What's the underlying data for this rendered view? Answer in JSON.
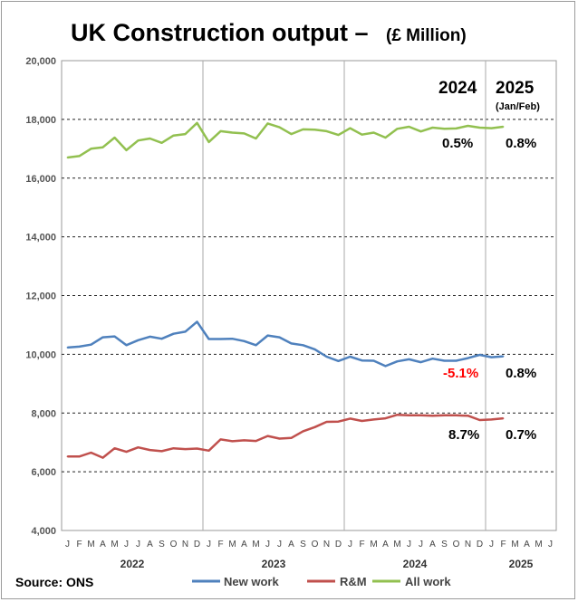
{
  "chart_data": {
    "type": "line",
    "title": "UK Construction output –",
    "subtitle": "(£ Million)",
    "ylim": [
      4000,
      20000
    ],
    "yticks": [
      "4,000",
      "6,000",
      "8,000",
      "10,000",
      "12,000",
      "14,000",
      "16,000",
      "18,000",
      "20,000"
    ],
    "ytick_values": [
      4000,
      6000,
      8000,
      10000,
      12000,
      14000,
      16000,
      18000,
      20000
    ],
    "x_month_labels": [
      "J",
      "F",
      "M",
      "A",
      "M",
      "J",
      "J",
      "A",
      "S",
      "O",
      "N",
      "D",
      "J",
      "F",
      "M",
      "A",
      "M",
      "J",
      "J",
      "A",
      "S",
      "O",
      "N",
      "D",
      "J",
      "F",
      "M",
      "A",
      "M",
      "J",
      "J",
      "A",
      "S",
      "O",
      "N",
      "D",
      "J",
      "F",
      "M",
      "A",
      "M",
      "J"
    ],
    "years": [
      {
        "label": "2022",
        "first_month_index": 0,
        "months": 12
      },
      {
        "label": "2023",
        "first_month_index": 12,
        "months": 12
      },
      {
        "label": "2024",
        "first_month_index": 24,
        "months": 12
      },
      {
        "label": "2025",
        "first_month_index": 36,
        "months": 6
      }
    ],
    "grid": "horizontal dashed, vertical year separators",
    "series": [
      {
        "name": "All work",
        "color": "#92c050",
        "values": [
          16700,
          16750,
          17000,
          17050,
          17380,
          16950,
          17280,
          17350,
          17200,
          17450,
          17500,
          17880,
          17230,
          17600,
          17550,
          17520,
          17350,
          17860,
          17730,
          17500,
          17660,
          17650,
          17600,
          17470,
          17700,
          17480,
          17550,
          17380,
          17680,
          17750,
          17590,
          17720,
          17680,
          17690,
          17780,
          17720,
          17700,
          17750
        ]
      },
      {
        "name": "New work",
        "color": "#4f81bd",
        "values": [
          10230,
          10260,
          10330,
          10580,
          10610,
          10310,
          10480,
          10600,
          10530,
          10700,
          10770,
          11110,
          10520,
          10520,
          10530,
          10450,
          10310,
          10640,
          10580,
          10370,
          10310,
          10170,
          9920,
          9770,
          9920,
          9790,
          9780,
          9600,
          9760,
          9830,
          9730,
          9850,
          9780,
          9780,
          9870,
          9980,
          9900,
          9930
        ]
      },
      {
        "name": "R&M",
        "color": "#c0504d",
        "values": [
          6520,
          6520,
          6650,
          6480,
          6800,
          6680,
          6830,
          6740,
          6700,
          6800,
          6770,
          6790,
          6720,
          7100,
          7040,
          7070,
          7050,
          7220,
          7130,
          7150,
          7380,
          7520,
          7700,
          7710,
          7810,
          7730,
          7780,
          7820,
          7940,
          7920,
          7920,
          7910,
          7920,
          7920,
          7910,
          7760,
          7780,
          7820
        ]
      }
    ],
    "column_headers": [
      {
        "label": "2024",
        "sub": ""
      },
      {
        "label": "2025",
        "sub": "(Jan/Feb)"
      }
    ],
    "annotations": [
      {
        "series": "All work",
        "col2024": "0.5%",
        "col2025": "0.8%",
        "negative2024": false
      },
      {
        "series": "New work",
        "col2024": "-5.1%",
        "col2025": "0.8%",
        "negative2024": true
      },
      {
        "series": "R&M",
        "col2024": "8.7%",
        "col2025": "0.7%",
        "negative2024": false
      }
    ],
    "legend": [
      {
        "name": "New work",
        "color": "#4f81bd"
      },
      {
        "name": "R&M",
        "color": "#c0504d"
      },
      {
        "name": "All work",
        "color": "#92c050"
      }
    ],
    "legend_position": "bottom",
    "source": "Source: ONS"
  }
}
